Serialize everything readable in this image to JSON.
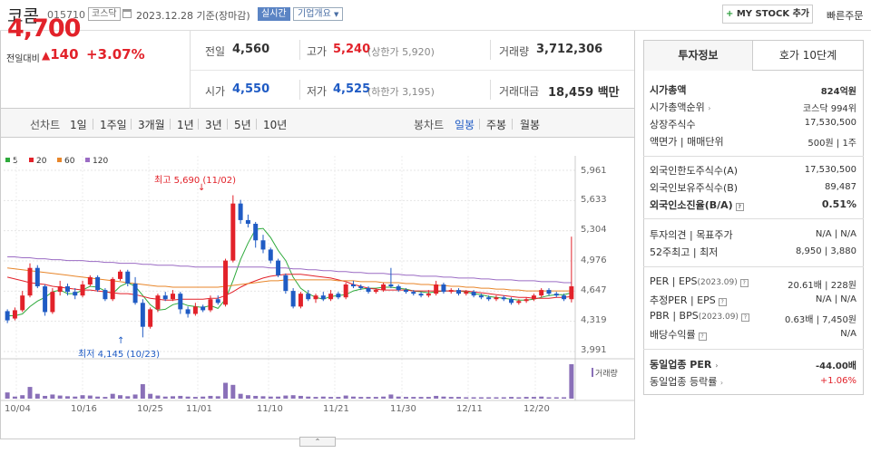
{
  "header": {
    "name": "코콤",
    "code": "015710",
    "market": "코스닥",
    "date": "2023.12.28 기준(장마감)",
    "realtime": "실시간",
    "company_info": "기업개요",
    "mystock": "MY STOCK 추가",
    "quick_order": "빠른주문"
  },
  "summary": {
    "price": "4,700",
    "change_label": "전일대비",
    "change": "140",
    "change_pct": "+3.07%",
    "prev_close_label": "전일",
    "prev_close": "4,560",
    "open_label": "시가",
    "open": "4,550",
    "high_label": "고가",
    "high": "5,240",
    "high_limit": "(상한가 5,920)",
    "low_label": "저가",
    "low": "4,525",
    "low_limit": "(하한가 3,195)",
    "volume_label": "거래량",
    "volume": "3,712,306",
    "amount_label": "거래대금",
    "amount": "18,459 백만"
  },
  "period": {
    "line_label": "선차트",
    "line_items": [
      "1일",
      "1주일",
      "3개월",
      "1년",
      "3년",
      "5년",
      "10년"
    ],
    "candle_label": "봉차트",
    "candle_items": [
      "일봉",
      "주봉",
      "월봉"
    ],
    "active_candle": "일봉"
  },
  "chart_data": {
    "type": "candlestick",
    "legend": [
      {
        "name": "5",
        "color": "#2eaa3c"
      },
      {
        "name": "20",
        "color": "#e2222a"
      },
      {
        "name": "60",
        "color": "#e8862a"
      },
      {
        "name": "120",
        "color": "#9b6cc4"
      }
    ],
    "yticks": [
      "5,961",
      "5,633",
      "5,304",
      "4,976",
      "4,647",
      "4,319",
      "3,991"
    ],
    "ylim": [
      3991,
      5961
    ],
    "xticks": [
      "10/04",
      "10/16",
      "10/25",
      "11/01",
      "11/10",
      "11/21",
      "11/30",
      "12/11",
      "12/20"
    ],
    "high_annotation": "최고 5,690 (11/02)",
    "low_annotation": "최저 4,145 (10/23)",
    "volume_label": "거래량",
    "candles": [
      [
        4430,
        4330,
        4450,
        4300
      ],
      [
        4350,
        4440,
        4470,
        4330
      ],
      [
        4440,
        4600,
        4650,
        4420
      ],
      [
        4600,
        4900,
        4950,
        4580
      ],
      [
        4900,
        4700,
        4930,
        4680
      ],
      [
        4700,
        4420,
        4720,
        4380
      ],
      [
        4420,
        4640,
        4680,
        4400
      ],
      [
        4640,
        4700,
        4760,
        4600
      ],
      [
        4700,
        4640,
        4730,
        4600
      ],
      [
        4640,
        4600,
        4680,
        4560
      ],
      [
        4600,
        4720,
        4760,
        4580
      ],
      [
        4720,
        4800,
        4820,
        4700
      ],
      [
        4800,
        4660,
        4820,
        4640
      ],
      [
        4660,
        4560,
        4680,
        4540
      ],
      [
        4560,
        4780,
        4800,
        4540
      ],
      [
        4780,
        4860,
        4880,
        4760
      ],
      [
        4860,
        4730,
        4880,
        4700
      ],
      [
        4730,
        4520,
        4800,
        4500
      ],
      [
        4520,
        4260,
        4560,
        4145
      ],
      [
        4260,
        4450,
        4470,
        4240
      ],
      [
        4450,
        4600,
        4620,
        4420
      ],
      [
        4600,
        4560,
        4640,
        4540
      ],
      [
        4560,
        4620,
        4660,
        4540
      ],
      [
        4620,
        4450,
        4640,
        4400
      ],
      [
        4450,
        4400,
        4480,
        4360
      ],
      [
        4400,
        4480,
        4520,
        4380
      ],
      [
        4480,
        4440,
        4500,
        4420
      ],
      [
        4440,
        4560,
        4600,
        4420
      ],
      [
        4560,
        4520,
        4600,
        4500
      ],
      [
        4500,
        4980,
        5000,
        4480
      ],
      [
        4980,
        5600,
        5690,
        4960
      ],
      [
        5600,
        5420,
        5640,
        5380
      ],
      [
        5420,
        5380,
        5480,
        5340
      ],
      [
        5380,
        5200,
        5400,
        5120
      ],
      [
        5200,
        5100,
        5260,
        5060
      ],
      [
        5100,
        4980,
        5120,
        4950
      ],
      [
        4980,
        4820,
        5000,
        4800
      ],
      [
        4820,
        4650,
        4840,
        4620
      ],
      [
        4650,
        4480,
        4680,
        4460
      ],
      [
        4480,
        4620,
        4640,
        4460
      ],
      [
        4620,
        4560,
        4660,
        4540
      ],
      [
        4560,
        4600,
        4620,
        4520
      ],
      [
        4600,
        4560,
        4640,
        4540
      ],
      [
        4560,
        4620,
        4660,
        4540
      ],
      [
        4620,
        4580,
        4640,
        4560
      ],
      [
        4580,
        4720,
        4740,
        4560
      ],
      [
        4720,
        4700,
        4760,
        4680
      ],
      [
        4700,
        4680,
        4720,
        4660
      ],
      [
        4680,
        4640,
        4700,
        4620
      ],
      [
        4640,
        4660,
        4680,
        4620
      ],
      [
        4660,
        4720,
        4740,
        4640
      ],
      [
        4720,
        4700,
        4900,
        4680
      ],
      [
        4700,
        4660,
        4720,
        4640
      ],
      [
        4660,
        4640,
        4680,
        4620
      ],
      [
        4640,
        4620,
        4660,
        4600
      ],
      [
        4620,
        4600,
        4640,
        4580
      ],
      [
        4600,
        4620,
        4660,
        4580
      ],
      [
        4620,
        4720,
        4760,
        4600
      ],
      [
        4720,
        4640,
        4740,
        4620
      ],
      [
        4640,
        4660,
        4680,
        4620
      ],
      [
        4660,
        4620,
        4680,
        4600
      ],
      [
        4620,
        4640,
        4660,
        4600
      ],
      [
        4640,
        4600,
        4660,
        4580
      ],
      [
        4600,
        4580,
        4620,
        4560
      ],
      [
        4580,
        4560,
        4600,
        4540
      ],
      [
        4560,
        4580,
        4600,
        4540
      ],
      [
        4580,
        4560,
        4600,
        4540
      ],
      [
        4560,
        4520,
        4580,
        4500
      ],
      [
        4520,
        4540,
        4560,
        4500
      ],
      [
        4540,
        4560,
        4580,
        4520
      ],
      [
        4560,
        4600,
        4620,
        4540
      ],
      [
        4600,
        4660,
        4680,
        4580
      ],
      [
        4660,
        4620,
        4680,
        4600
      ],
      [
        4620,
        4600,
        4640,
        4580
      ],
      [
        4600,
        4560,
        4620,
        4540
      ],
      [
        4560,
        4700,
        5240,
        4525
      ]
    ],
    "volume": [
      18,
      6,
      10,
      34,
      14,
      8,
      12,
      9,
      7,
      6,
      10,
      9,
      6,
      5,
      14,
      10,
      7,
      12,
      42,
      14,
      9,
      6,
      7,
      8,
      6,
      5,
      6,
      8,
      7,
      46,
      40,
      14,
      10,
      8,
      7,
      6,
      6,
      9,
      10,
      8,
      6,
      5,
      6,
      5,
      5,
      9,
      6,
      5,
      5,
      5,
      6,
      12,
      6,
      5,
      5,
      5,
      5,
      8,
      6,
      5,
      5,
      4,
      4,
      4,
      4,
      4,
      4,
      5,
      4,
      5,
      5,
      6,
      4,
      4,
      4,
      100
    ],
    "ma": {
      "5": [
        4380,
        4380,
        4400,
        4480,
        4540,
        4580,
        4640,
        4660,
        4620,
        4620,
        4660,
        4700,
        4690,
        4650,
        4620,
        4700,
        4740,
        4700,
        4600,
        4500,
        4440,
        4450,
        4500,
        4520,
        4490,
        4480,
        4470,
        4490,
        4460,
        4560,
        4760,
        4990,
        5170,
        5320,
        5330,
        5230,
        5090,
        4980,
        4800,
        4680,
        4620,
        4580,
        4560,
        4590,
        4600,
        4610,
        4650,
        4670,
        4680,
        4680,
        4690,
        4690,
        4680,
        4670,
        4650,
        4640,
        4630,
        4640,
        4650,
        4650,
        4650,
        4640,
        4620,
        4610,
        4590,
        4580,
        4570,
        4560,
        4550,
        4550,
        4560,
        4580,
        4600,
        4610,
        4610,
        4630
      ],
      "20": [
        4800,
        4780,
        4760,
        4740,
        4730,
        4720,
        4700,
        4690,
        4680,
        4670,
        4660,
        4660,
        4650,
        4640,
        4630,
        4620,
        4620,
        4610,
        4590,
        4570,
        4560,
        4550,
        4550,
        4560,
        4560,
        4560,
        4560,
        4570,
        4570,
        4600,
        4640,
        4690,
        4730,
        4760,
        4790,
        4810,
        4820,
        4830,
        4830,
        4830,
        4820,
        4810,
        4800,
        4790,
        4770,
        4750,
        4720,
        4700,
        4680,
        4670,
        4660,
        4660,
        4660,
        4660,
        4650,
        4650,
        4650,
        4650,
        4650,
        4650,
        4650,
        4650,
        4640,
        4630,
        4620,
        4610,
        4600,
        4590,
        4580,
        4580,
        4570,
        4570,
        4570,
        4580,
        4580,
        4590
      ],
      "60": [
        4900,
        4890,
        4880,
        4870,
        4860,
        4850,
        4840,
        4830,
        4820,
        4810,
        4800,
        4790,
        4780,
        4770,
        4760,
        4750,
        4740,
        4730,
        4720,
        4710,
        4700,
        4700,
        4690,
        4690,
        4690,
        4690,
        4690,
        4690,
        4690,
        4700,
        4710,
        4720,
        4730,
        4740,
        4750,
        4760,
        4760,
        4770,
        4770,
        4770,
        4770,
        4770,
        4770,
        4770,
        4760,
        4760,
        4760,
        4750,
        4750,
        4750,
        4740,
        4740,
        4740,
        4730,
        4730,
        4720,
        4720,
        4710,
        4710,
        4700,
        4700,
        4690,
        4690,
        4680,
        4680,
        4670,
        4670,
        4660,
        4660,
        4650,
        4650,
        4650,
        4650,
        4650,
        4650,
        4650
      ],
      "120": [
        5020,
        5020,
        5010,
        5010,
        5000,
        5000,
        4990,
        4990,
        4980,
        4980,
        4980,
        4970,
        4970,
        4960,
        4960,
        4950,
        4950,
        4950,
        4940,
        4940,
        4930,
        4930,
        4930,
        4920,
        4920,
        4910,
        4910,
        4910,
        4910,
        4910,
        4910,
        4910,
        4910,
        4910,
        4910,
        4900,
        4900,
        4900,
        4890,
        4890,
        4880,
        4880,
        4870,
        4870,
        4860,
        4860,
        4850,
        4850,
        4840,
        4840,
        4840,
        4830,
        4830,
        4820,
        4820,
        4810,
        4810,
        4810,
        4800,
        4800,
        4790,
        4790,
        4790,
        4780,
        4780,
        4770,
        4770,
        4770,
        4760,
        4760,
        4760,
        4750,
        4750,
        4750,
        4740,
        4740
      ]
    }
  },
  "right_panel": {
    "tab_invest": "투자정보",
    "tab_orderbook": "호가 10단계",
    "market_cap_label": "시가총액",
    "market_cap": "824억원",
    "market_rank_label": "시가총액순위",
    "market_rank": "코스닥 994위",
    "shares_label": "상장주식수",
    "shares": "17,530,500",
    "par_label": "액면가",
    "trade_unit_label": "매매단위",
    "par": "500원",
    "trade_unit": "1주",
    "foreign_limit_label": "외국인한도주식수(A)",
    "foreign_limit": "17,530,500",
    "foreign_hold_label": "외국인보유주식수(B)",
    "foreign_hold": "89,487",
    "foreign_ratio_label": "외국인소진율(B/A)",
    "foreign_ratio": "0.51%",
    "opinion_label": "투자의견",
    "target_label": "목표주가",
    "opinion": "N/A",
    "target": "N/A",
    "w52_high_label": "52주최고",
    "w52_low_label": "최저",
    "w52_high": "8,950",
    "w52_low": "3,880",
    "per_label": "PER",
    "eps_label": "EPS",
    "period_tag": "(2023.09)",
    "per": "20.61배",
    "eps": "228원",
    "est_per_label": "추정PER",
    "est_per": "N/A",
    "est_eps": "N/A",
    "pbr_label": "PBR",
    "bps_label": "BPS",
    "pbr": "0.63배",
    "bps": "7,450원",
    "div_label": "배당수익률",
    "div": "N/A",
    "sector_per_label": "동일업종 PER",
    "sector_per": "-44.00배",
    "sector_rate_label": "동일업종 등락률",
    "sector_rate": "+1.06%"
  }
}
